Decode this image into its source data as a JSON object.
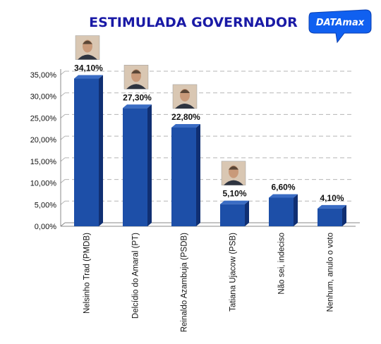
{
  "chart_data": {
    "type": "bar",
    "title": "ESTIMULADA GOVERNADOR",
    "brand": "DATAmax",
    "categories": [
      "Nelsinho Trad (PMDB)",
      "Delcídio do Amaral (PT)",
      "Reinaldo Azambuja (PSDB)",
      "Tatiana Ujacow (PSB)",
      "Não sei, indeciso",
      "Nenhum, anulo o voto"
    ],
    "values": [
      34.1,
      27.3,
      22.8,
      5.1,
      6.6,
      4.1
    ],
    "value_labels": [
      "34,10%",
      "27,30%",
      "22,80%",
      "5,10%",
      "6,60%",
      "4,10%"
    ],
    "yticks": [
      "0,00%",
      "5,00%",
      "10,00%",
      "15,00%",
      "20,00%",
      "25,00%",
      "30,00%",
      "35,00%"
    ],
    "ylim": [
      0,
      35
    ],
    "grid": true,
    "photos": [
      true,
      true,
      true,
      true,
      false,
      false
    ],
    "colors": {
      "bar_front": "#1d4fa8",
      "bar_side": "#102f72",
      "bar_top": "#3a6cc4",
      "grid": "#b5b5b5",
      "title": "#1a1aa6",
      "brand": "#1060f0"
    }
  }
}
